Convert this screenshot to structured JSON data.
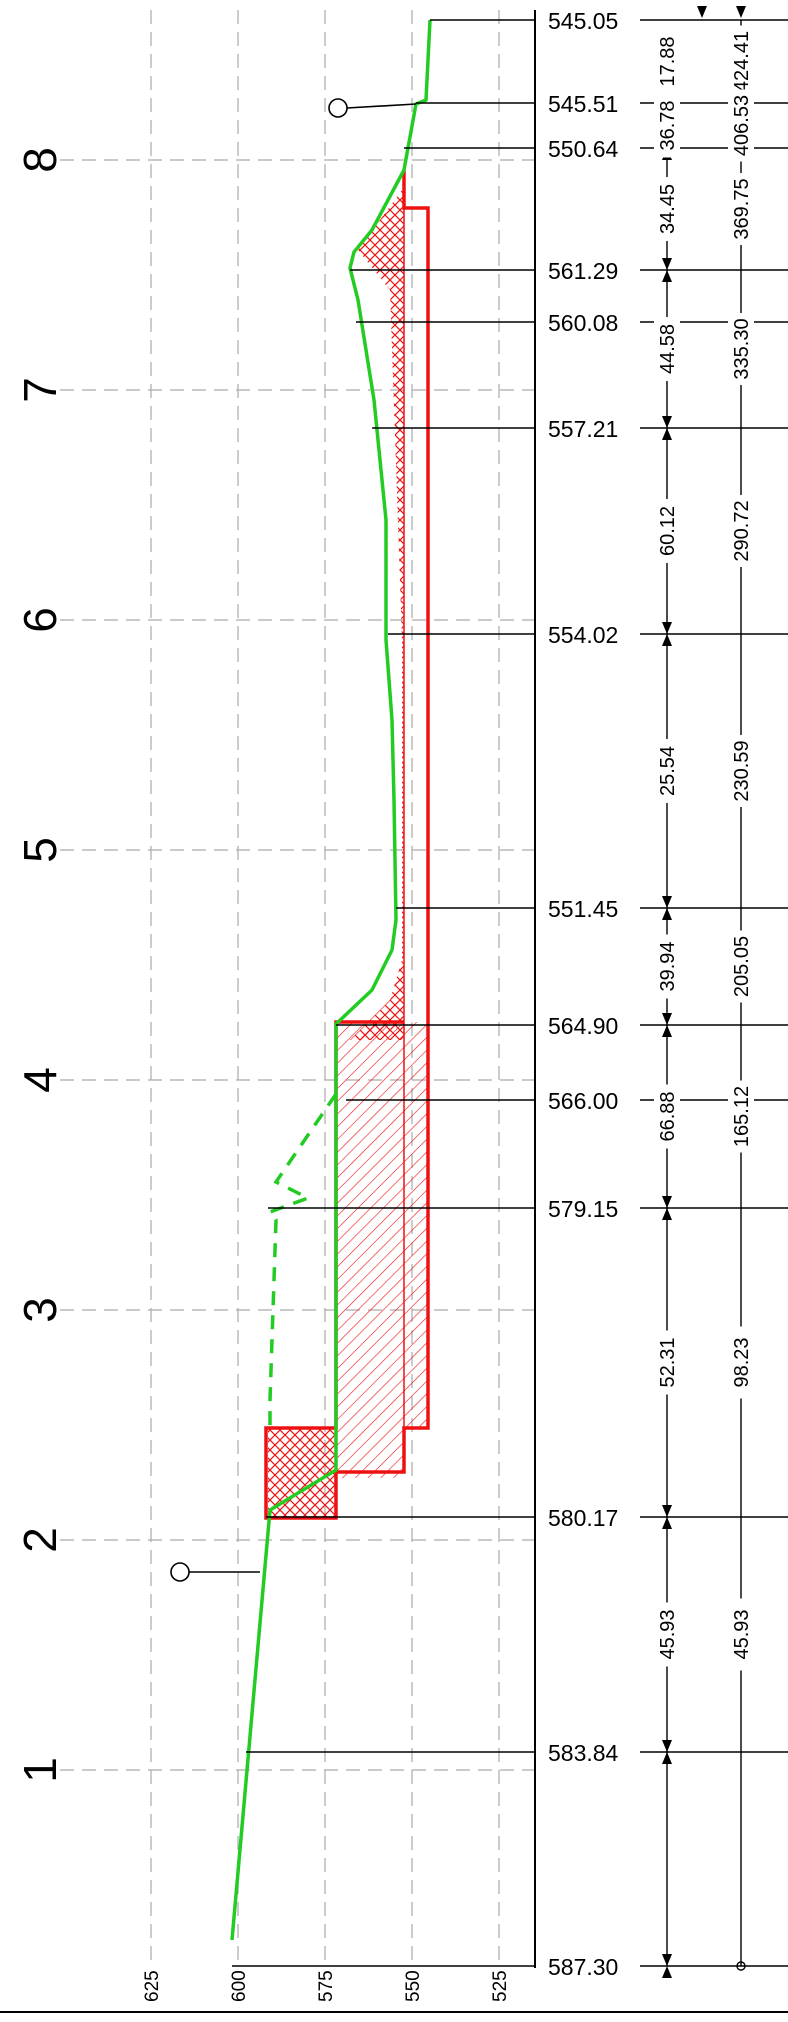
{
  "profile": {
    "elevation_axis": {
      "ticks": [
        "625",
        "600",
        "575",
        "550",
        "525"
      ],
      "values": [
        625,
        600,
        575,
        550,
        525
      ]
    },
    "km_markers": {
      "labels": [
        "1",
        "2",
        "3",
        "4",
        "5",
        "6",
        "7",
        "8"
      ],
      "values": [
        1,
        2,
        3,
        4,
        5,
        6,
        7,
        8
      ]
    },
    "stations": [
      {
        "elev": "545.05",
        "seg": "",
        "cum": "",
        "seg_value": null,
        "cum_value": null,
        "label": true
      },
      {
        "elev": "545.51",
        "seg": "17.88",
        "cum": "424.41",
        "seg_value": 17.88,
        "cum_value": 424.41,
        "label": true
      },
      {
        "elev": "550.64",
        "seg": "36.78",
        "cum": "406.53",
        "seg_value": 36.78,
        "cum_value": 406.53,
        "label": true
      },
      {
        "elev": "561.29",
        "seg": "34.45",
        "cum": "369.75",
        "seg_value": 34.45,
        "cum_value": 369.75,
        "label": true
      },
      {
        "elev": "560.08",
        "seg": "",
        "cum": "",
        "seg_value": null,
        "cum_value": null,
        "label": true
      },
      {
        "elev": "557.21",
        "seg": "44.58",
        "cum": "335.30",
        "seg_value": 44.58,
        "cum_value": 335.3,
        "label": true
      },
      {
        "elev": "554.02",
        "seg": "60.12",
        "cum": "290.72",
        "seg_value": 60.12,
        "cum_value": 290.72,
        "label": true
      },
      {
        "elev": "551.45",
        "seg": "25.54",
        "cum": "230.59",
        "seg_value": 25.54,
        "cum_value": 230.59,
        "label": true
      },
      {
        "elev": "564.90",
        "seg": "39.94",
        "cum": "205.05",
        "seg_value": 39.94,
        "cum_value": 205.05,
        "label": true
      },
      {
        "elev": "566.00",
        "seg": "",
        "cum": "",
        "seg_value": null,
        "cum_value": null,
        "label": true
      },
      {
        "elev": "579.15",
        "seg": "66.88",
        "cum": "165.12",
        "seg_value": 66.88,
        "cum_value": 165.12,
        "label": true
      },
      {
        "elev": "580.17",
        "seg": "52.31",
        "cum": "98.23",
        "seg_value": 52.31,
        "cum_value": 98.23,
        "label": true
      },
      {
        "elev": "583.84",
        "seg": "45.93",
        "cum": "45.93",
        "seg_value": 45.93,
        "cum_value": 45.93,
        "label": true
      },
      {
        "elev": "587.30",
        "seg": "",
        "cum": "",
        "seg_value": null,
        "cum_value": null,
        "label": true
      }
    ],
    "colors": {
      "terrain": "#22cc22",
      "cut": "#ee1111",
      "grid": "#aaaaaa",
      "line": "#000000"
    }
  }
}
